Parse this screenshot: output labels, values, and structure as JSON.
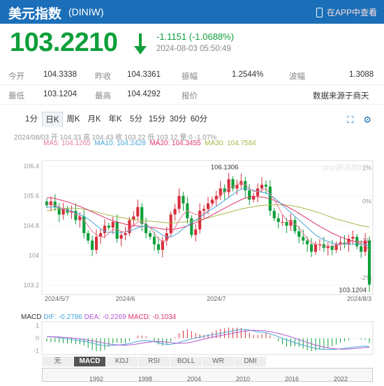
{
  "header": {
    "title": "美元指数",
    "code": "(DINIW)",
    "app_label": "在APP中查看"
  },
  "quote": {
    "price": "103.2210",
    "change": "-1.1151 (-1.0688%)",
    "timestamp": "2024-08-03 05:50:49",
    "direction": "down"
  },
  "stats": {
    "row1": {
      "open_label": "今开",
      "open": "104.3338",
      "prev_label": "昨收",
      "prev": "104.3361",
      "amp_label": "振幅",
      "amp": "1.2544%",
      "wave_label": "波幅",
      "wave": "1.3088"
    },
    "row2": {
      "low_label": "最低",
      "low": "103.1204",
      "high_label": "最高",
      "high": "104.4292",
      "quote_label": "报价",
      "source": "数据来源于商天"
    }
  },
  "tabs": [
    "1分",
    "日K",
    "周K",
    "月K",
    "年K",
    "5分",
    "15分",
    "30分",
    "60分"
  ],
  "active_tab": "日K",
  "chart_info": {
    "ohlc": "2024/08/03 开 104.33 高 104.43 收 103.22 低 103.12 量 0 -1.07%",
    "ma5": "MA5: 104.1265",
    "ma10": "MA10: 104.2428",
    "ma20": "MA20: 104.3455",
    "ma30": "MA30: 104.7584"
  },
  "chart_data": {
    "type": "candlestick",
    "yticks": [
      "106.4",
      "105.6",
      "104.8",
      "104",
      "103.2"
    ],
    "right_ticks": [
      "1%",
      "0%",
      "-1%",
      "-2%"
    ],
    "xticks": [
      "2024/5/7",
      "2024/6",
      "2024/7",
      "2024/8/3"
    ],
    "max_label": "106.1306",
    "min_label": "103.1204",
    "closes": [
      105.35,
      105.45,
      105.3,
      105.1,
      105.25,
      105.15,
      105.2,
      104.95,
      105.05,
      104.6,
      104.4,
      104.15,
      104.5,
      104.6,
      104.8,
      104.75,
      104.9,
      104.45,
      104.55,
      104.6,
      104.95,
      105.05,
      105.3,
      104.85,
      104.6,
      104.5,
      104.3,
      104.15,
      104.4,
      104.6,
      105.1,
      105.25,
      105.6,
      105.4,
      105.0,
      104.55,
      104.7,
      105.2,
      105.25,
      105.4,
      105.5,
      105.6,
      105.8,
      105.7,
      106.05,
      105.8,
      105.9,
      106.0,
      105.75,
      105.5,
      105.6,
      105.8,
      105.9,
      105.85,
      105.2,
      105.0,
      104.9,
      104.9,
      104.8,
      104.95,
      104.65,
      104.5,
      104.4,
      104.3,
      104.1,
      104.3,
      104.3,
      104.2,
      104.25,
      104.15,
      104.3,
      104.35,
      104.3,
      104.45,
      104.5,
      104.25,
      104.1,
      104.4,
      103.22
    ],
    "ma5": [
      105.4,
      105.38,
      105.35,
      105.3,
      105.25,
      105.2,
      105.18,
      105.1,
      105.05,
      104.95,
      104.8,
      104.65,
      104.55,
      104.5,
      104.5,
      104.6,
      104.7,
      104.7,
      104.65,
      104.62,
      104.7,
      104.8,
      104.9,
      104.9,
      104.85,
      104.75,
      104.6,
      104.45,
      104.38,
      104.4,
      104.55,
      104.75,
      104.95,
      105.1,
      105.2,
      105.15,
      105.1,
      105.1,
      105.12,
      105.2,
      105.35,
      105.5,
      105.62,
      105.7,
      105.8,
      105.85,
      105.9,
      105.95,
      105.9,
      105.8,
      105.72,
      105.72,
      105.75,
      105.8,
      105.65,
      105.5,
      105.3,
      105.1,
      104.95,
      104.9,
      104.85,
      104.75,
      104.6,
      104.45,
      104.35,
      104.3,
      104.28,
      104.25,
      104.25,
      104.25,
      104.27,
      104.3,
      104.32,
      104.35,
      104.38,
      104.36,
      104.3,
      104.28,
      104.13
    ],
    "ma10": [
      105.3,
      105.3,
      105.3,
      105.28,
      105.25,
      105.22,
      105.2,
      105.15,
      105.1,
      105.05,
      104.98,
      104.9,
      104.8,
      104.72,
      104.65,
      104.62,
      104.62,
      104.62,
      104.62,
      104.63,
      104.66,
      104.7,
      104.75,
      104.78,
      104.78,
      104.75,
      104.7,
      104.62,
      104.55,
      104.5,
      104.5,
      104.55,
      104.62,
      104.72,
      104.8,
      104.88,
      104.95,
      105.02,
      105.1,
      105.18,
      105.25,
      105.32,
      105.4,
      105.48,
      105.56,
      105.64,
      105.72,
      105.78,
      105.8,
      105.78,
      105.75,
      105.72,
      105.7,
      105.68,
      105.62,
      105.55,
      105.45,
      105.35,
      105.25,
      105.15,
      105.05,
      104.95,
      104.85,
      104.75,
      104.65,
      104.55,
      104.48,
      104.42,
      104.38,
      104.34,
      104.31,
      104.3,
      104.3,
      104.3,
      104.3,
      104.3,
      104.3,
      104.3,
      104.24
    ],
    "ma20": [
      105.55,
      105.55,
      105.53,
      105.5,
      105.47,
      105.44,
      105.4,
      105.36,
      105.32,
      105.27,
      105.22,
      105.17,
      105.12,
      105.07,
      105.02,
      104.97,
      104.93,
      104.9,
      104.87,
      104.84,
      104.82,
      104.8,
      104.79,
      104.78,
      104.77,
      104.76,
      104.75,
      104.73,
      104.71,
      104.7,
      104.7,
      104.71,
      104.73,
      104.76,
      104.8,
      104.84,
      104.88,
      104.93,
      104.98,
      105.03,
      105.09,
      105.15,
      105.21,
      105.27,
      105.33,
      105.39,
      105.44,
      105.5,
      105.54,
      105.57,
      105.58,
      105.58,
      105.57,
      105.55,
      105.52,
      105.48,
      105.43,
      105.38,
      105.32,
      105.26,
      105.2,
      105.13,
      105.06,
      104.99,
      104.92,
      104.85,
      104.78,
      104.72,
      104.66,
      104.6,
      104.55,
      104.5,
      104.46,
      104.42,
      104.39,
      104.37,
      104.36,
      104.36,
      104.35
    ],
    "ma30": [
      105.2,
      105.22,
      105.24,
      105.25,
      105.26,
      105.27,
      105.27,
      105.27,
      105.26,
      105.24,
      105.22,
      105.2,
      105.17,
      105.14,
      105.11,
      105.08,
      105.06,
      105.04,
      105.02,
      105.0,
      104.98,
      104.96,
      104.95,
      104.94,
      104.93,
      104.92,
      104.91,
      104.9,
      104.89,
      104.88,
      104.88,
      104.88,
      104.89,
      104.9,
      104.91,
      104.92,
      104.94,
      104.96,
      104.98,
      105.01,
      105.04,
      105.07,
      105.1,
      105.13,
      105.16,
      105.19,
      105.22,
      105.25,
      105.27,
      105.29,
      105.31,
      105.33,
      105.34,
      105.35,
      105.36,
      105.36,
      105.36,
      105.36,
      105.35,
      105.34,
      105.32,
      105.3,
      105.27,
      105.24,
      105.21,
      105.18,
      105.14,
      105.1,
      105.06,
      105.02,
      104.98,
      104.95,
      104.92,
      104.89,
      104.86,
      104.83,
      104.8,
      104.78,
      104.76
    ],
    "macd_yticks": [
      "1",
      "0",
      "-1"
    ],
    "macd_labels": {
      "dif": "DIF: -0.2786",
      "dea": "DEA: -0.2269",
      "macd": "MACD: -0.1034"
    }
  },
  "bottom_tabs": [
    "无",
    "MACD",
    "KDJ",
    "RSI",
    "BOLL",
    "WR",
    "DMI"
  ],
  "active_bottom": "MACD",
  "navigator_years": [
    "1992",
    "1998",
    "2004",
    "2010",
    "2016",
    "2022"
  ],
  "colors": {
    "header": "#1b6fb8",
    "down": "#0e9f3a",
    "up": "#d6303b",
    "ma5": "#e57b9a",
    "ma10": "#4aa8d8",
    "ma20": "#e0336a",
    "ma30": "#a6b84a"
  },
  "icons": [
    "phone-icon",
    "down-arrow-icon",
    "fullscreen-icon",
    "settings-icon"
  ]
}
